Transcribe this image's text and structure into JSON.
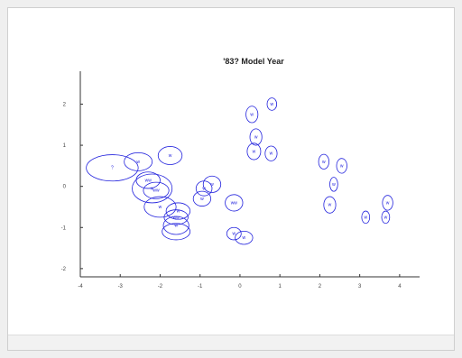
{
  "chart_data": {
    "type": "scatter",
    "title": "'83? Model Year",
    "xlabel": "",
    "ylabel": "",
    "xlim": [
      -4,
      4.5
    ],
    "ylim": [
      -2.2,
      2.8
    ],
    "xticks": [
      -4,
      -3,
      -2,
      -1,
      0,
      1,
      2,
      3,
      4
    ],
    "yticks": [
      -2,
      -1,
      0,
      1,
      2
    ],
    "grid": false,
    "marker_color": "#2222dd",
    "points": [
      {
        "x": -3.2,
        "y": 0.45,
        "rx": 0.65,
        "ry": 0.32,
        "label": "?"
      },
      {
        "x": -2.55,
        "y": 0.6,
        "rx": 0.35,
        "ry": 0.22,
        "label": "w"
      },
      {
        "x": -1.75,
        "y": 0.75,
        "rx": 0.3,
        "ry": 0.22,
        "label": "w"
      },
      {
        "x": -2.2,
        "y": -0.05,
        "rx": 0.5,
        "ry": 0.35,
        "label": "w"
      },
      {
        "x": -2.3,
        "y": 0.15,
        "rx": 0.3,
        "ry": 0.2,
        "label": "ww"
      },
      {
        "x": -2.1,
        "y": -0.1,
        "rx": 0.32,
        "ry": 0.2,
        "label": "ww"
      },
      {
        "x": -2.0,
        "y": -0.5,
        "rx": 0.4,
        "ry": 0.25,
        "label": "w"
      },
      {
        "x": -1.55,
        "y": -0.6,
        "rx": 0.3,
        "ry": 0.2,
        "label": "w"
      },
      {
        "x": -1.6,
        "y": -0.75,
        "rx": 0.3,
        "ry": 0.18,
        "label": "ww"
      },
      {
        "x": -1.6,
        "y": -0.95,
        "rx": 0.32,
        "ry": 0.22,
        "label": "w"
      },
      {
        "x": -1.6,
        "y": -1.1,
        "rx": 0.35,
        "ry": 0.2,
        "label": ""
      },
      {
        "x": -0.7,
        "y": 0.05,
        "rx": 0.22,
        "ry": 0.2,
        "label": "w"
      },
      {
        "x": -0.9,
        "y": -0.05,
        "rx": 0.2,
        "ry": 0.18,
        "label": "w"
      },
      {
        "x": -0.95,
        "y": -0.3,
        "rx": 0.22,
        "ry": 0.18,
        "label": "w"
      },
      {
        "x": -0.15,
        "y": -0.4,
        "rx": 0.22,
        "ry": 0.2,
        "label": "ww"
      },
      {
        "x": -0.15,
        "y": -1.15,
        "rx": 0.18,
        "ry": 0.15,
        "label": "w"
      },
      {
        "x": 0.1,
        "y": -1.25,
        "rx": 0.22,
        "ry": 0.16,
        "label": "w"
      },
      {
        "x": 0.3,
        "y": 1.75,
        "rx": 0.15,
        "ry": 0.2,
        "label": "w"
      },
      {
        "x": 0.4,
        "y": 1.2,
        "rx": 0.15,
        "ry": 0.2,
        "label": "w"
      },
      {
        "x": 0.35,
        "y": 0.85,
        "rx": 0.17,
        "ry": 0.2,
        "label": "w"
      },
      {
        "x": 0.8,
        "y": 2.0,
        "rx": 0.12,
        "ry": 0.15,
        "label": "w"
      },
      {
        "x": 0.78,
        "y": 0.8,
        "rx": 0.15,
        "ry": 0.18,
        "label": "w"
      },
      {
        "x": 2.1,
        "y": 0.6,
        "rx": 0.13,
        "ry": 0.18,
        "label": "w"
      },
      {
        "x": 2.55,
        "y": 0.5,
        "rx": 0.13,
        "ry": 0.18,
        "label": "w"
      },
      {
        "x": 2.35,
        "y": 0.05,
        "rx": 0.1,
        "ry": 0.17,
        "label": "w"
      },
      {
        "x": 2.25,
        "y": -0.45,
        "rx": 0.15,
        "ry": 0.2,
        "label": "w"
      },
      {
        "x": 3.15,
        "y": -0.75,
        "rx": 0.1,
        "ry": 0.15,
        "label": "w"
      },
      {
        "x": 3.7,
        "y": -0.4,
        "rx": 0.13,
        "ry": 0.18,
        "label": "w"
      },
      {
        "x": 3.65,
        "y": -0.75,
        "rx": 0.1,
        "ry": 0.15,
        "label": "w"
      }
    ]
  }
}
